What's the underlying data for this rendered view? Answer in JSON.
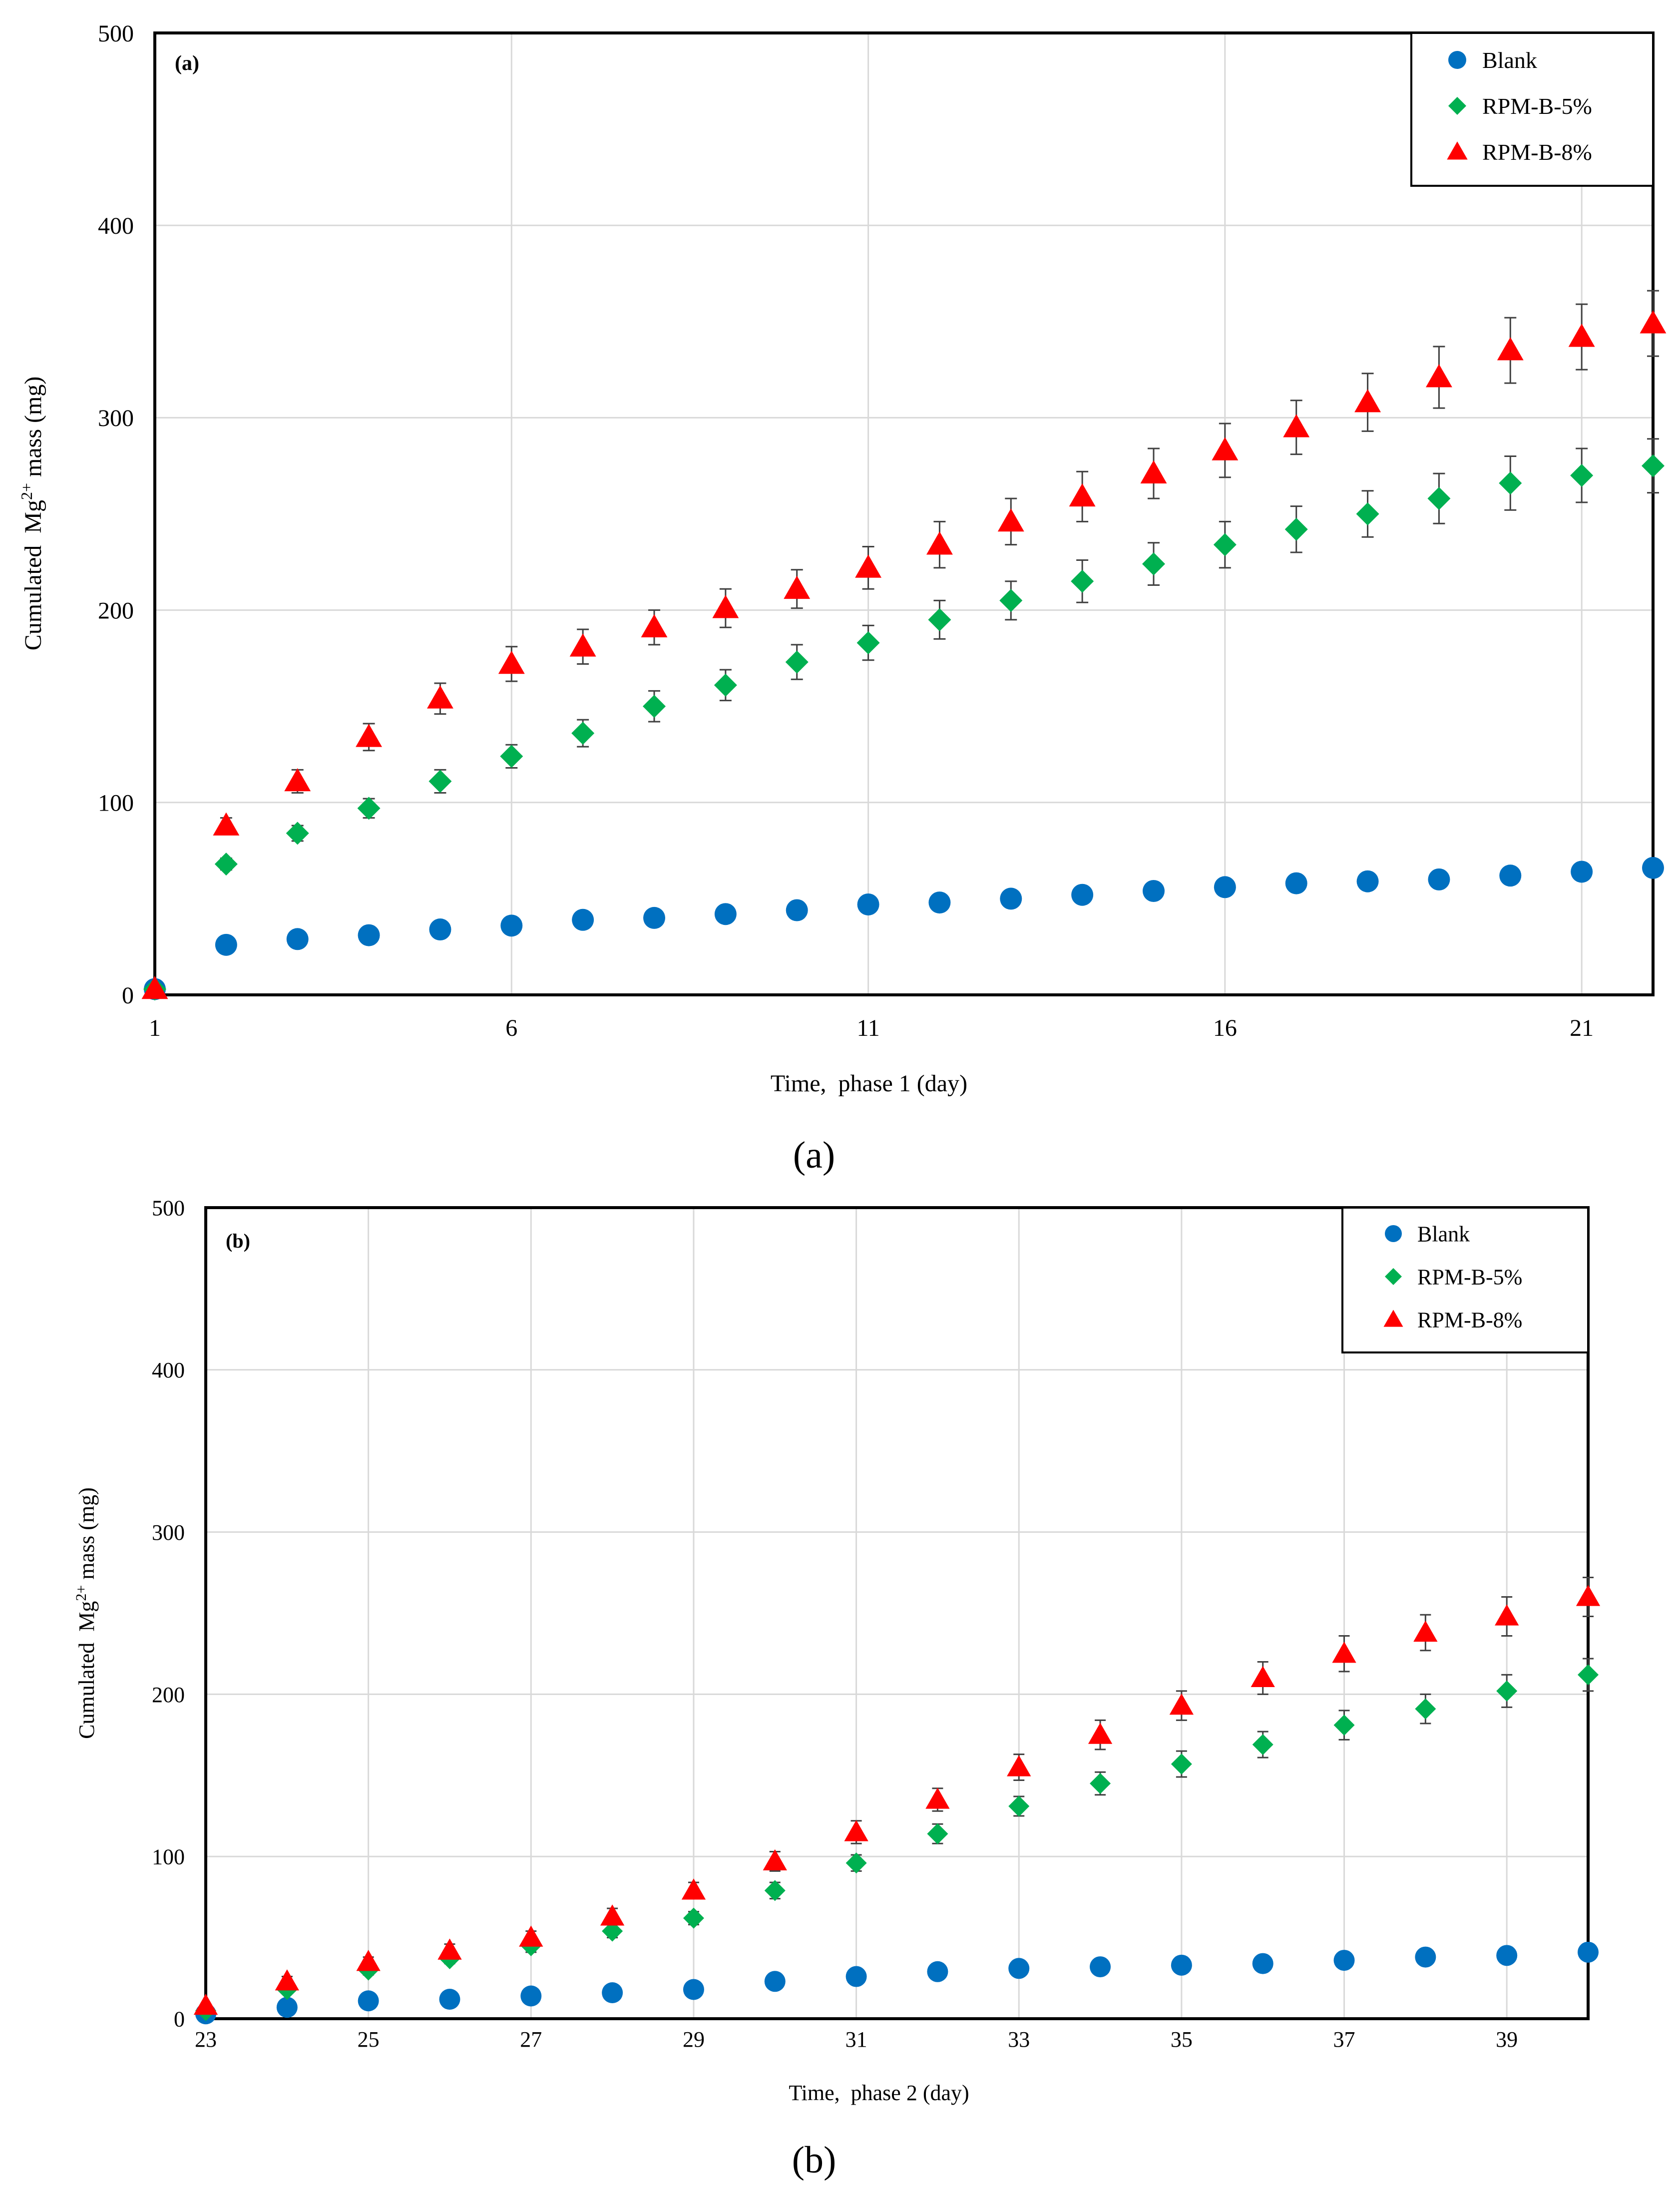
{
  "chart_data": [
    {
      "type": "scatter",
      "panel_label": "(a)",
      "caption": "(a)",
      "xlabel": "Time,  phase 1 (day)",
      "ylabel_main": "Cumulated  Mg",
      "ylabel_sup": "2+",
      "ylabel_tail": " mass (mg)",
      "xlim": [
        1,
        22
      ],
      "ylim": [
        0,
        500
      ],
      "xticks": [
        1,
        6,
        11,
        16,
        21
      ],
      "yticks": [
        0,
        100,
        200,
        300,
        400,
        500
      ],
      "grid": true,
      "legend_position": "top-right",
      "series": [
        {
          "name": "Blank",
          "marker": "circle",
          "color": "#0070c0",
          "x": [
            1,
            2,
            3,
            4,
            5,
            6,
            7,
            8,
            9,
            10,
            11,
            12,
            13,
            14,
            15,
            16,
            17,
            18,
            19,
            20,
            21,
            22
          ],
          "y": [
            3,
            26,
            29,
            31,
            34,
            36,
            39,
            40,
            42,
            44,
            47,
            48,
            50,
            52,
            54,
            56,
            58,
            59,
            60,
            62,
            64,
            66
          ],
          "err": [
            0,
            0,
            0,
            0,
            0,
            0,
            0,
            0,
            0,
            0,
            0,
            0,
            0,
            0,
            0,
            0,
            0,
            0,
            0,
            0,
            0,
            0
          ]
        },
        {
          "name": "RPM-B-5%",
          "marker": "diamond",
          "color": "#00b050",
          "x": [
            1,
            2,
            3,
            4,
            5,
            6,
            7,
            8,
            9,
            10,
            11,
            12,
            13,
            14,
            15,
            16,
            17,
            18,
            19,
            20,
            21,
            22
          ],
          "y": [
            3,
            68,
            84,
            97,
            111,
            124,
            136,
            150,
            161,
            173,
            183,
            195,
            205,
            215,
            224,
            234,
            242,
            250,
            258,
            266,
            270,
            275
          ],
          "err": [
            0,
            3,
            4,
            5,
            6,
            6,
            7,
            8,
            8,
            9,
            9,
            10,
            10,
            11,
            11,
            12,
            12,
            12,
            13,
            14,
            14,
            14
          ]
        },
        {
          "name": "RPM-B-8%",
          "marker": "triangle",
          "color": "#ff0000",
          "x": [
            1,
            2,
            3,
            4,
            5,
            6,
            7,
            8,
            9,
            10,
            11,
            12,
            13,
            14,
            15,
            16,
            17,
            18,
            19,
            20,
            21,
            22
          ],
          "y": [
            3,
            88,
            111,
            134,
            154,
            172,
            181,
            191,
            201,
            211,
            222,
            234,
            246,
            259,
            271,
            283,
            295,
            308,
            321,
            335,
            342,
            349
          ],
          "err": [
            0,
            4,
            6,
            7,
            8,
            9,
            9,
            9,
            10,
            10,
            11,
            12,
            12,
            13,
            13,
            14,
            14,
            15,
            16,
            17,
            17,
            17
          ]
        }
      ]
    },
    {
      "type": "scatter",
      "panel_label": "(b)",
      "caption": "(b)",
      "xlabel": "Time,  phase 2 (day)",
      "ylabel_main": "Cumulated  Mg",
      "ylabel_sup": "2+",
      "ylabel_tail": " mass (mg)",
      "xlim": [
        23,
        40
      ],
      "ylim": [
        0,
        500
      ],
      "xticks": [
        23,
        25,
        27,
        29,
        31,
        33,
        35,
        37,
        39
      ],
      "yticks": [
        0,
        100,
        200,
        300,
        400,
        500
      ],
      "grid": true,
      "legend_position": "top-right",
      "series": [
        {
          "name": "Blank",
          "marker": "circle",
          "color": "#0070c0",
          "x": [
            23,
            24,
            25,
            26,
            27,
            28,
            29,
            30,
            31,
            32,
            33,
            34,
            35,
            36,
            37,
            38,
            39,
            40
          ],
          "y": [
            3,
            7,
            11,
            12,
            14,
            16,
            18,
            23,
            26,
            29,
            31,
            32,
            33,
            34,
            36,
            38,
            39,
            41
          ],
          "err": [
            0,
            0,
            0,
            0,
            0,
            0,
            0,
            0,
            0,
            0,
            0,
            0,
            0,
            0,
            0,
            0,
            0,
            0
          ]
        },
        {
          "name": "RPM-B-5%",
          "marker": "diamond",
          "color": "#00b050",
          "x": [
            23,
            24,
            25,
            26,
            27,
            28,
            29,
            30,
            31,
            32,
            33,
            34,
            35,
            36,
            37,
            38,
            39,
            40
          ],
          "y": [
            5,
            18,
            30,
            37,
            45,
            54,
            62,
            79,
            96,
            114,
            131,
            145,
            157,
            169,
            181,
            191,
            202,
            212
          ],
          "err": [
            0,
            2,
            3,
            3,
            4,
            4,
            4,
            5,
            5,
            6,
            6,
            7,
            8,
            8,
            9,
            9,
            10,
            10
          ]
        },
        {
          "name": "RPM-B-8%",
          "marker": "triangle",
          "color": "#ff0000",
          "x": [
            23,
            24,
            25,
            26,
            27,
            28,
            29,
            30,
            31,
            32,
            33,
            34,
            35,
            36,
            37,
            38,
            39,
            40
          ],
          "y": [
            8,
            23,
            35,
            42,
            50,
            63,
            79,
            97,
            115,
            135,
            155,
            175,
            193,
            210,
            225,
            238,
            248,
            260
          ],
          "err": [
            0,
            3,
            3,
            4,
            4,
            5,
            5,
            6,
            7,
            7,
            8,
            9,
            9,
            10,
            11,
            11,
            12,
            12
          ]
        }
      ]
    }
  ]
}
